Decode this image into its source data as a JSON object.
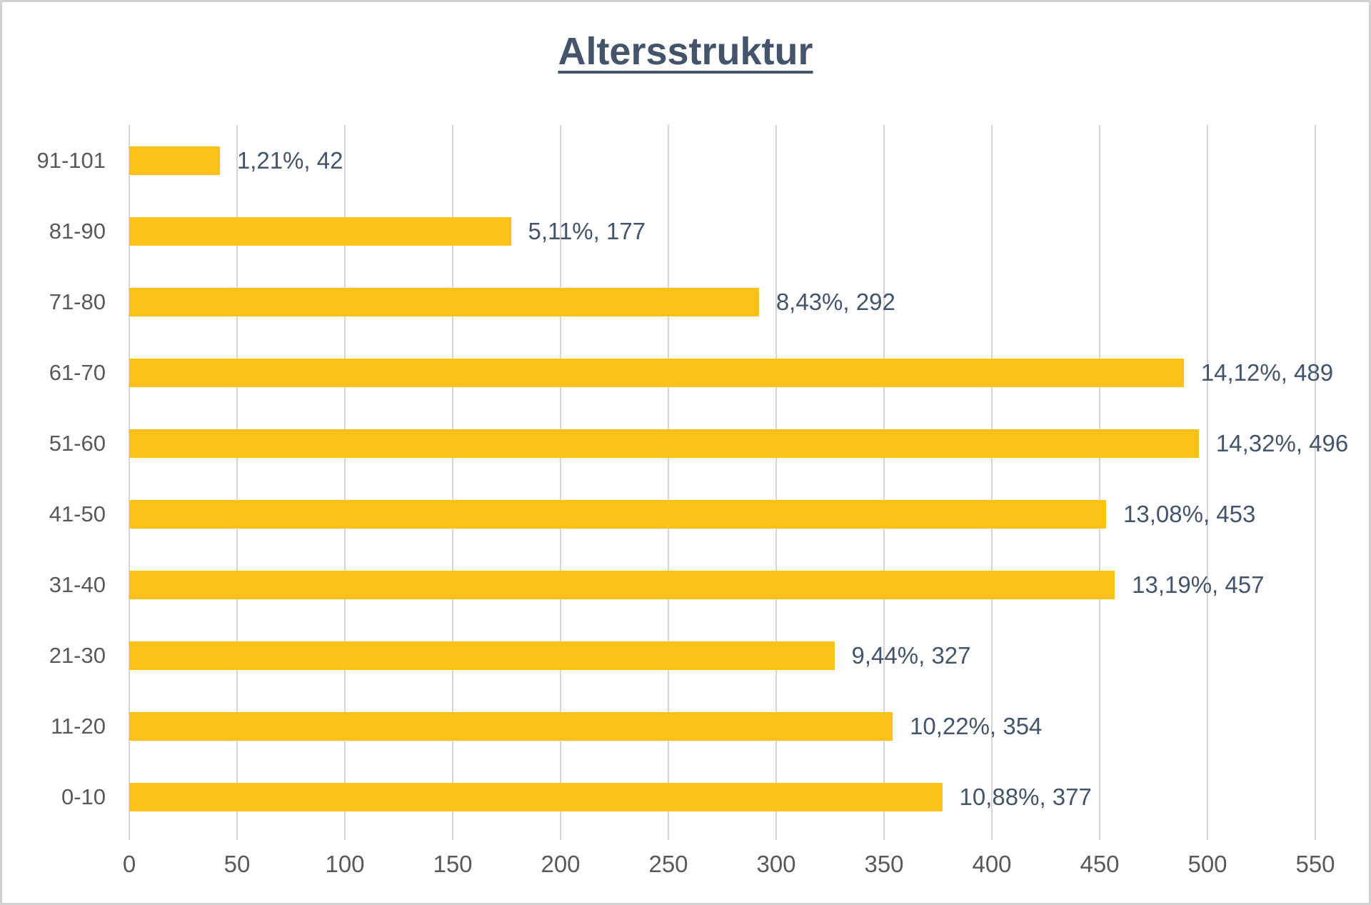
{
  "chart_data": {
    "type": "bar",
    "orientation": "horizontal",
    "title": "Altersstruktur",
    "xlabel": "",
    "ylabel": "",
    "legend": "none",
    "gridlines": "vertical",
    "rows_top_to_bottom": [
      {
        "category": "91-101",
        "value": 42,
        "label": "1,21%, 42"
      },
      {
        "category": "81-90",
        "value": 177,
        "label": "5,11%, 177"
      },
      {
        "category": "71-80",
        "value": 292,
        "label": "8,43%, 292"
      },
      {
        "category": "61-70",
        "value": 489,
        "label": "14,12%, 489"
      },
      {
        "category": "51-60",
        "value": 496,
        "label": "14,32%, 496"
      },
      {
        "category": "41-50",
        "value": 453,
        "label": "13,08%, 453"
      },
      {
        "category": "31-40",
        "value": 457,
        "label": "13,19%, 457"
      },
      {
        "category": "21-30",
        "value": 327,
        "label": "9,44%, 327"
      },
      {
        "category": "11-20",
        "value": 354,
        "label": "10,22%, 354"
      },
      {
        "category": "0-10",
        "value": 377,
        "label": "10,88%, 377"
      }
    ],
    "x_axis": {
      "min": 0,
      "max": 550,
      "tick_step": 50,
      "tick_labels": [
        "0",
        "50",
        "100",
        "150",
        "200",
        "250",
        "300",
        "350",
        "400",
        "450",
        "500",
        "550"
      ]
    },
    "colors": {
      "bar": "#FBC117",
      "title": "#44546A",
      "data_label": "#44546A",
      "axis_label": "#595959",
      "gridline": "#D6D6D6"
    }
  }
}
